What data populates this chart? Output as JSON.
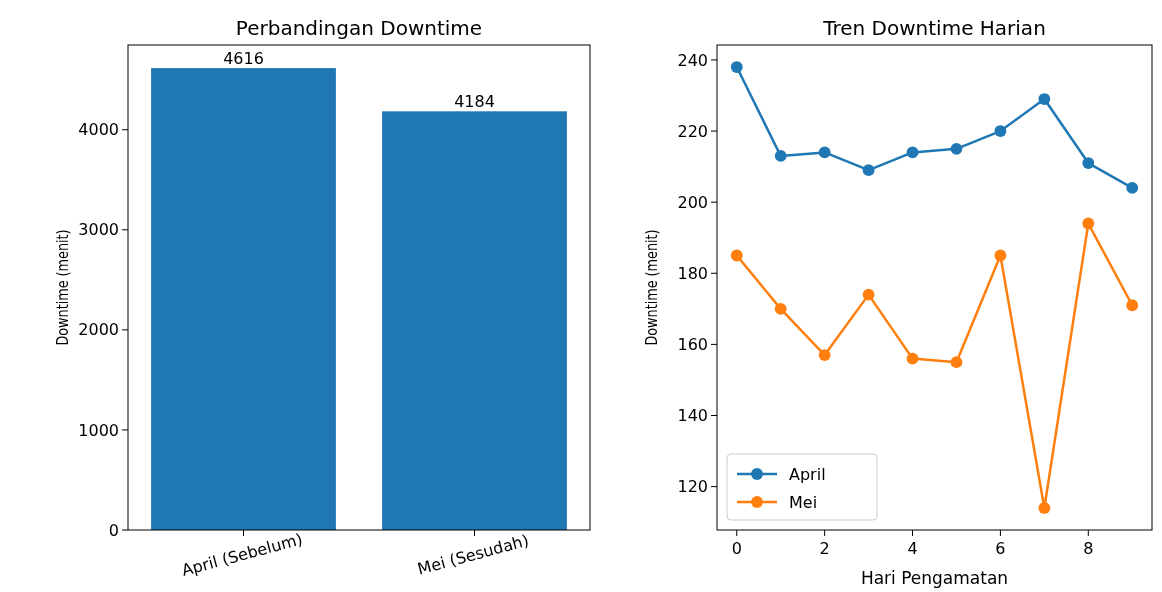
{
  "chart_data": [
    {
      "type": "bar",
      "title": "Perbandingan Downtime",
      "ylabel": "Downtime (menit)",
      "categories": [
        "April (Sebelum)",
        "Mei (Sesudah)"
      ],
      "values": [
        4616,
        4184
      ],
      "color": "#1f77b4",
      "ylim": [
        0,
        4846.8
      ],
      "yticks": [
        0,
        1000,
        2000,
        3000,
        4000
      ],
      "data_labels": true,
      "grid": false
    },
    {
      "type": "line",
      "title": "Tren Downtime Harian",
      "xlabel": "Hari Pengamatan",
      "ylabel": "Downtime (menit)",
      "x": [
        0,
        1,
        2,
        3,
        4,
        5,
        6,
        7,
        8,
        9
      ],
      "xlim": [
        -0.45,
        9.45
      ],
      "xticks": [
        0,
        2,
        4,
        6,
        8
      ],
      "ylim": [
        107.8,
        244.2
      ],
      "yticks": [
        120,
        140,
        160,
        180,
        200,
        220,
        240
      ],
      "marker": "circle",
      "legend": "bottom left",
      "grid": false,
      "series": [
        {
          "name": "April",
          "color": "#1f77b4",
          "values": [
            238,
            213,
            214,
            209,
            214,
            215,
            220,
            229,
            211,
            204
          ]
        },
        {
          "name": "Mei",
          "color": "#ff7f0e",
          "values": [
            185,
            170,
            157,
            174,
            156,
            155,
            185,
            114,
            194,
            171
          ]
        }
      ]
    }
  ]
}
